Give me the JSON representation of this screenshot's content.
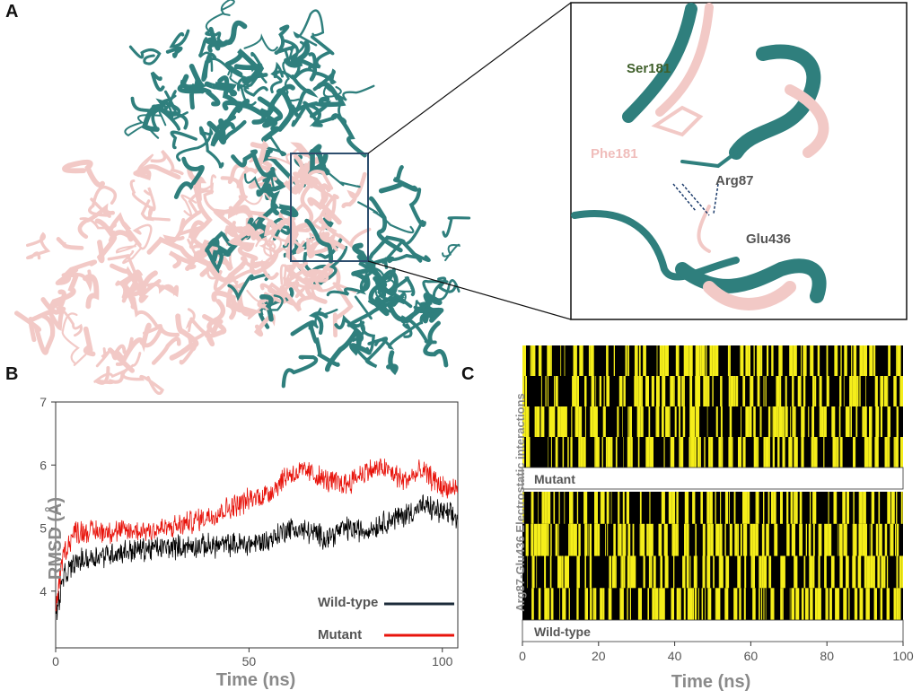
{
  "panels": {
    "a": "A",
    "b": "B",
    "c": "C"
  },
  "structure": {
    "colors": {
      "wild_type": "#2f7f7d",
      "mutant": "#f2c9c6"
    },
    "labels": {
      "ser": "Ser181",
      "phe": "Phe181",
      "arg": "Arg87",
      "glu": "Glu436"
    },
    "label_colors": {
      "ser": "#3f5f2a",
      "phe": "#f0bdbb",
      "arg": "#555555",
      "glu": "#555555"
    }
  },
  "chart_data": [
    {
      "type": "line",
      "xlabel": "Time (ns)",
      "ylabel": "RMSD (Å)",
      "xlim": [
        0,
        104
      ],
      "ylim": [
        3.1,
        7
      ],
      "xticks": [
        0,
        50,
        100
      ],
      "yticks": [
        4,
        5,
        6,
        7
      ],
      "legend": "bottom-right",
      "series": [
        {
          "name": "Wild-type",
          "color": "#000000",
          "legend_swatch": "#1c2b3a",
          "x": [
            0,
            2,
            5,
            10,
            20,
            30,
            40,
            50,
            55,
            60,
            65,
            70,
            75,
            80,
            85,
            90,
            95,
            100,
            104
          ],
          "y": [
            3.6,
            4.2,
            4.45,
            4.55,
            4.65,
            4.7,
            4.72,
            4.75,
            4.8,
            5.0,
            4.95,
            4.85,
            5.0,
            4.95,
            5.1,
            5.2,
            5.35,
            5.25,
            5.15
          ]
        },
        {
          "name": "Mutant",
          "color": "#e8140c",
          "legend_swatch": "#e8140c",
          "x": [
            0,
            2,
            5,
            10,
            20,
            30,
            40,
            50,
            55,
            60,
            65,
            70,
            75,
            80,
            85,
            90,
            95,
            100,
            104
          ],
          "y": [
            3.7,
            4.6,
            4.95,
            4.95,
            4.95,
            5.0,
            5.2,
            5.45,
            5.55,
            5.85,
            5.9,
            5.75,
            5.7,
            5.9,
            5.95,
            5.75,
            5.9,
            5.65,
            5.6
          ]
        }
      ]
    },
    {
      "type": "heatmap",
      "ylabel": "Arg87-Glu436 Electrostatic interactions",
      "xlabel": "Time (ns)",
      "xlim": [
        0,
        100
      ],
      "xticks": [
        0,
        20,
        40,
        60,
        80,
        100
      ],
      "on_color": "#f5ee1a",
      "off_color": "#000000",
      "groups": [
        {
          "name": "Mutant",
          "rows": 4,
          "occupancy": [
            0.35,
            0.5,
            0.45,
            0.35
          ]
        },
        {
          "name": "Wild-type",
          "rows": 4,
          "occupancy": [
            0.55,
            0.6,
            0.45,
            0.55
          ]
        }
      ]
    }
  ]
}
